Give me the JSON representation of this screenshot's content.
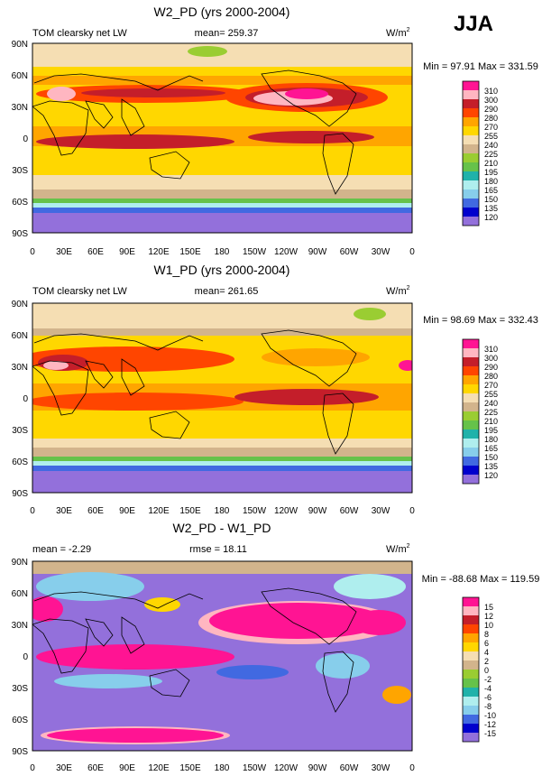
{
  "season_label": "JJA",
  "units_label": "W/m",
  "units_exponent": "2",
  "chart_data": [
    {
      "type": "heatmap",
      "title": "W2_PD (yrs 2000-2004)",
      "variable_label": "TOM clearsky net LW",
      "mean_text": "mean= 259.37",
      "minmax_text": "Min =  97.91 Max = 331.59",
      "x_ticks": [
        "0",
        "30E",
        "60E",
        "90E",
        "120E",
        "150E",
        "180",
        "150W",
        "120W",
        "90W",
        "60W",
        "30W",
        "0"
      ],
      "y_ticks": [
        "90N",
        "60N",
        "30N",
        "0",
        "30S",
        "60S",
        "90S"
      ],
      "levels": [
        "310",
        "300",
        "290",
        "280",
        "270",
        "255",
        "240",
        "225",
        "210",
        "195",
        "180",
        "165",
        "150",
        "135",
        "120"
      ],
      "colors": [
        "#ff1493",
        "#ffb6c1",
        "#c41e2a",
        "#ff4500",
        "#ffa500",
        "#ffd700",
        "#f5deb3",
        "#d2b48c",
        "#9acd32",
        "#66c24a",
        "#20b2aa",
        "#afeeee",
        "#87ceeb",
        "#4169e1",
        "#0000cd",
        "#9370db"
      ]
    },
    {
      "type": "heatmap",
      "title": "W1_PD (yrs 2000-2004)",
      "variable_label": "TOM clearsky net LW",
      "mean_text": "mean= 261.65",
      "minmax_text": "Min =  98.69 Max = 332.43",
      "x_ticks": [
        "0",
        "30E",
        "60E",
        "90E",
        "120E",
        "150E",
        "180",
        "150W",
        "120W",
        "90W",
        "60W",
        "30W",
        "0"
      ],
      "y_ticks": [
        "90N",
        "60N",
        "30N",
        "0",
        "30S",
        "60S",
        "90S"
      ],
      "levels": [
        "310",
        "300",
        "290",
        "280",
        "270",
        "255",
        "240",
        "225",
        "210",
        "195",
        "180",
        "165",
        "150",
        "135",
        "120"
      ],
      "colors": [
        "#ff1493",
        "#ffb6c1",
        "#c41e2a",
        "#ff4500",
        "#ffa500",
        "#ffd700",
        "#f5deb3",
        "#d2b48c",
        "#9acd32",
        "#66c24a",
        "#20b2aa",
        "#afeeee",
        "#87ceeb",
        "#4169e1",
        "#0000cd",
        "#9370db"
      ]
    },
    {
      "type": "heatmap",
      "title": "W2_PD - W1_PD",
      "mean_text": "mean =  -2.29",
      "rmse_text": "rmse =  18.11",
      "minmax_text": "Min = -88.68 Max = 119.59",
      "x_ticks": [
        "0",
        "30E",
        "60E",
        "90E",
        "120E",
        "150E",
        "180",
        "150W",
        "120W",
        "90W",
        "60W",
        "30W",
        "0"
      ],
      "y_ticks": [
        "90N",
        "60N",
        "30N",
        "0",
        "30S",
        "60S",
        "90S"
      ],
      "levels": [
        "15",
        "12",
        "10",
        "8",
        "6",
        "4",
        "2",
        "0",
        "-2",
        "-4",
        "-6",
        "-8",
        "-10",
        "-12",
        "-15"
      ],
      "colors": [
        "#ff1493",
        "#ffb6c1",
        "#c41e2a",
        "#ff4500",
        "#ffa500",
        "#ffd700",
        "#f5deb3",
        "#d2b48c",
        "#9acd32",
        "#66c24a",
        "#20b2aa",
        "#afeeee",
        "#87ceeb",
        "#4169e1",
        "#0000cd",
        "#9370db"
      ]
    }
  ]
}
